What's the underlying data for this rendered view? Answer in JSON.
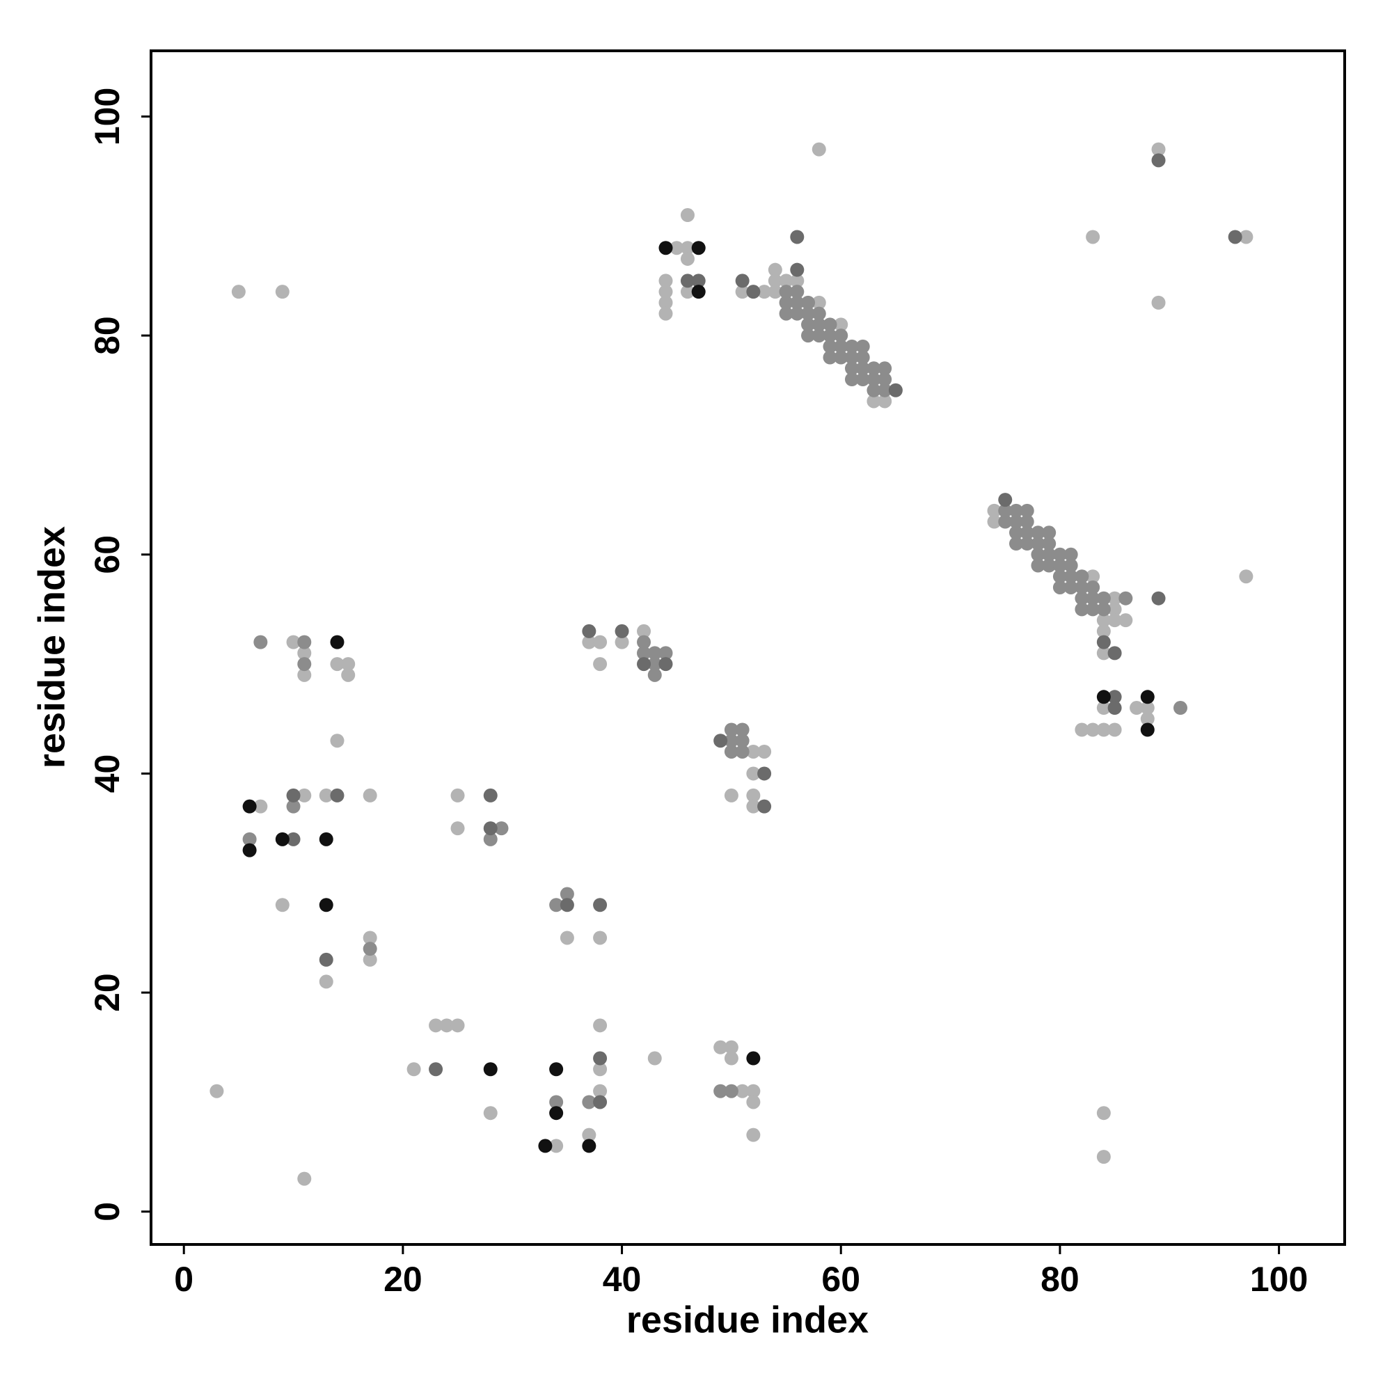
{
  "chart_data": {
    "type": "scatter",
    "xlabel": "residue index",
    "ylabel": "residue index",
    "xlim": [
      -3,
      106
    ],
    "ylim": [
      -3,
      106
    ],
    "xticks": [
      0,
      20,
      40,
      60,
      80,
      100
    ],
    "yticks": [
      0,
      20,
      40,
      60,
      80,
      100
    ],
    "grid": false,
    "series": [
      {
        "color": "#b3b3b3",
        "x": [
          58,
          89,
          83,
          97,
          89,
          46,
          45,
          46,
          46,
          44,
          44,
          46,
          44,
          44,
          5,
          9,
          51,
          53,
          54,
          54,
          55,
          56,
          54,
          58,
          60,
          63,
          64,
          74,
          74,
          83,
          85,
          85,
          84,
          85,
          86,
          84,
          84,
          97,
          84,
          87,
          88,
          88,
          82,
          83,
          84,
          85,
          84,
          84,
          42,
          37,
          38,
          40,
          38,
          52,
          53,
          52,
          50,
          52,
          52,
          10,
          11,
          14,
          15,
          11,
          15,
          14,
          11,
          13,
          17,
          7,
          25,
          25,
          9,
          13,
          17,
          17,
          35,
          38,
          23,
          24,
          25,
          21,
          38,
          38,
          43,
          38,
          28,
          37,
          34,
          49,
          50,
          50,
          51,
          52,
          52,
          52,
          3,
          11
        ],
        "y": [
          97,
          97,
          89,
          89,
          83,
          91,
          88,
          88,
          87,
          85,
          84,
          84,
          83,
          82,
          84,
          84,
          84,
          84,
          86,
          85,
          85,
          85,
          84,
          83,
          81,
          74,
          74,
          64,
          63,
          58,
          56,
          55,
          54,
          54,
          54,
          53,
          51,
          58,
          46,
          46,
          46,
          45,
          44,
          44,
          44,
          44,
          9,
          5,
          53,
          52,
          52,
          52,
          50,
          42,
          42,
          40,
          38,
          38,
          37,
          52,
          51,
          50,
          50,
          49,
          49,
          43,
          38,
          38,
          38,
          37,
          38,
          35,
          28,
          21,
          25,
          23,
          25,
          25,
          17,
          17,
          17,
          13,
          17,
          13,
          14,
          11,
          9,
          7,
          6,
          15,
          15,
          14,
          11,
          11,
          10,
          7,
          11,
          3
        ]
      },
      {
        "color": "#8c8c8c",
        "x": [
          55,
          56,
          55,
          56,
          57,
          55,
          56,
          57,
          58,
          59,
          57,
          58,
          57,
          58,
          59,
          60,
          59,
          60,
          61,
          62,
          59,
          60,
          61,
          62,
          61,
          62,
          63,
          64,
          61,
          62,
          63,
          64,
          63,
          64,
          75,
          76,
          77,
          75,
          76,
          77,
          76,
          77,
          78,
          79,
          76,
          77,
          78,
          79,
          78,
          79,
          80,
          81,
          78,
          79,
          80,
          81,
          80,
          81,
          82,
          80,
          81,
          82,
          83,
          82,
          83,
          84,
          86,
          82,
          83,
          84,
          91,
          42,
          42,
          43,
          44,
          43,
          43,
          50,
          51,
          50,
          51,
          50,
          51,
          7,
          11,
          11,
          10,
          6,
          29,
          28,
          17,
          34,
          35,
          37,
          34,
          49,
          50
        ],
        "y": [
          84,
          84,
          83,
          83,
          83,
          82,
          82,
          82,
          82,
          81,
          81,
          81,
          80,
          80,
          80,
          80,
          79,
          79,
          79,
          79,
          78,
          78,
          78,
          78,
          77,
          77,
          77,
          77,
          76,
          76,
          76,
          76,
          75,
          75,
          64,
          64,
          64,
          63,
          63,
          63,
          62,
          62,
          62,
          62,
          61,
          61,
          61,
          61,
          60,
          60,
          60,
          60,
          59,
          59,
          59,
          59,
          58,
          58,
          58,
          57,
          57,
          57,
          57,
          56,
          56,
          56,
          56,
          55,
          55,
          55,
          46,
          52,
          51,
          51,
          51,
          50,
          49,
          44,
          44,
          43,
          43,
          42,
          42,
          52,
          52,
          50,
          37,
          34,
          35,
          34,
          24,
          28,
          29,
          10,
          10,
          11,
          11
        ]
      },
      {
        "color": "#6b6b6b",
        "x": [
          89,
          96,
          56,
          46,
          47,
          51,
          52,
          56,
          65,
          75,
          84,
          85,
          89,
          85,
          85,
          37,
          40,
          42,
          44,
          49,
          53,
          53,
          10,
          14,
          10,
          28,
          28,
          13,
          35,
          38,
          23,
          38,
          38
        ],
        "y": [
          96,
          89,
          89,
          85,
          85,
          85,
          84,
          86,
          75,
          65,
          52,
          51,
          56,
          47,
          46,
          53,
          53,
          50,
          50,
          43,
          40,
          37,
          38,
          38,
          34,
          38,
          35,
          23,
          28,
          28,
          13,
          14,
          10
        ]
      },
      {
        "color": "#111111",
        "x": [
          44,
          47,
          47,
          84,
          88,
          88,
          14,
          6,
          9,
          13,
          6,
          13,
          28,
          34,
          34,
          33,
          37,
          52
        ],
        "y": [
          88,
          88,
          84,
          47,
          47,
          44,
          52,
          37,
          34,
          34,
          33,
          28,
          13,
          13,
          9,
          6,
          6,
          14
        ]
      }
    ]
  }
}
